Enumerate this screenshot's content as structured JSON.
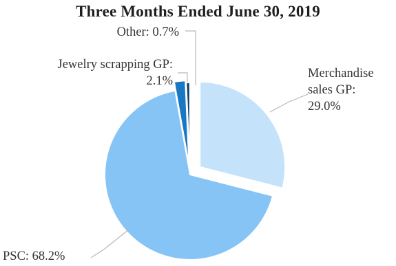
{
  "chart_data": {
    "type": "pie",
    "title": "Three Months Ended June 30, 2019",
    "slices": [
      {
        "label_lines": [
          "Merchandise",
          "sales GP:",
          "29.0%"
        ],
        "value": 29.0,
        "color": "#c5e2fb",
        "exploded": true
      },
      {
        "label_lines": [
          "PSC: 68.2%"
        ],
        "value": 68.2,
        "color": "#86c4f6",
        "exploded": false
      },
      {
        "label_lines": [
          "Jewelry scrapping GP:",
          "2.1%"
        ],
        "value": 2.1,
        "color": "#1a78c2",
        "exploded": true
      },
      {
        "label_lines": [
          "Other: 0.7%"
        ],
        "value": 0.7,
        "color": "#0d3f66",
        "exploded": true
      }
    ]
  }
}
